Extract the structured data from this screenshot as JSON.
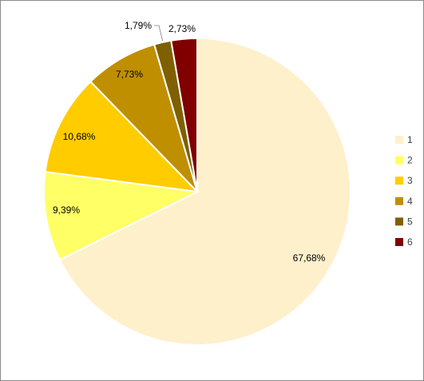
{
  "chart_data": {
    "type": "pie",
    "title": "",
    "legend_position": "right",
    "start_angle_deg": 0,
    "direction": "clockwise",
    "slices": [
      {
        "name": "1",
        "value": 67.68,
        "label": "67,68%",
        "color": "#FFF0CC"
      },
      {
        "name": "2",
        "value": 9.39,
        "label": "9,39%",
        "color": "#FFFF66"
      },
      {
        "name": "3",
        "value": 10.68,
        "label": "10,68%",
        "color": "#FFCC00"
      },
      {
        "name": "4",
        "value": 7.73,
        "label": "7,73%",
        "color": "#BF8F00"
      },
      {
        "name": "5",
        "value": 1.79,
        "label": "1,79%",
        "color": "#7F6000"
      },
      {
        "name": "6",
        "value": 2.73,
        "label": "2,73%",
        "color": "#800000"
      }
    ]
  }
}
